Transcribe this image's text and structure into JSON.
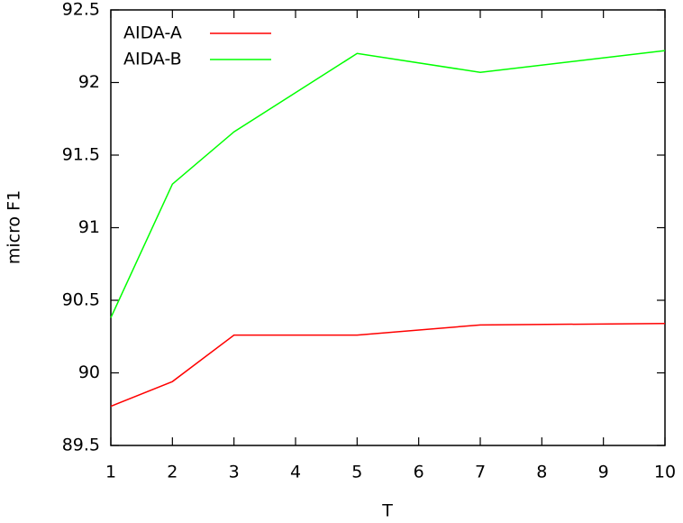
{
  "chart_data": {
    "type": "line",
    "xlabel": "T",
    "ylabel": "micro F1",
    "x": [
      1,
      2,
      3,
      5,
      7,
      10
    ],
    "series": [
      {
        "name": "AIDA-A",
        "color": "#ff0000",
        "values": [
          89.77,
          89.94,
          90.26,
          90.26,
          90.33,
          90.34
        ]
      },
      {
        "name": "AIDA-B",
        "color": "#00ff00",
        "values": [
          90.38,
          91.3,
          91.66,
          92.2,
          92.07,
          92.22
        ]
      }
    ],
    "xlim": [
      1,
      10
    ],
    "xticks": [
      1,
      2,
      3,
      4,
      5,
      6,
      7,
      8,
      9,
      10
    ],
    "ylim": [
      89.5,
      92.5
    ],
    "yticks": [
      89.5,
      90,
      90.5,
      91,
      91.5,
      92,
      92.5
    ],
    "legend": "top-left",
    "grid": false
  }
}
